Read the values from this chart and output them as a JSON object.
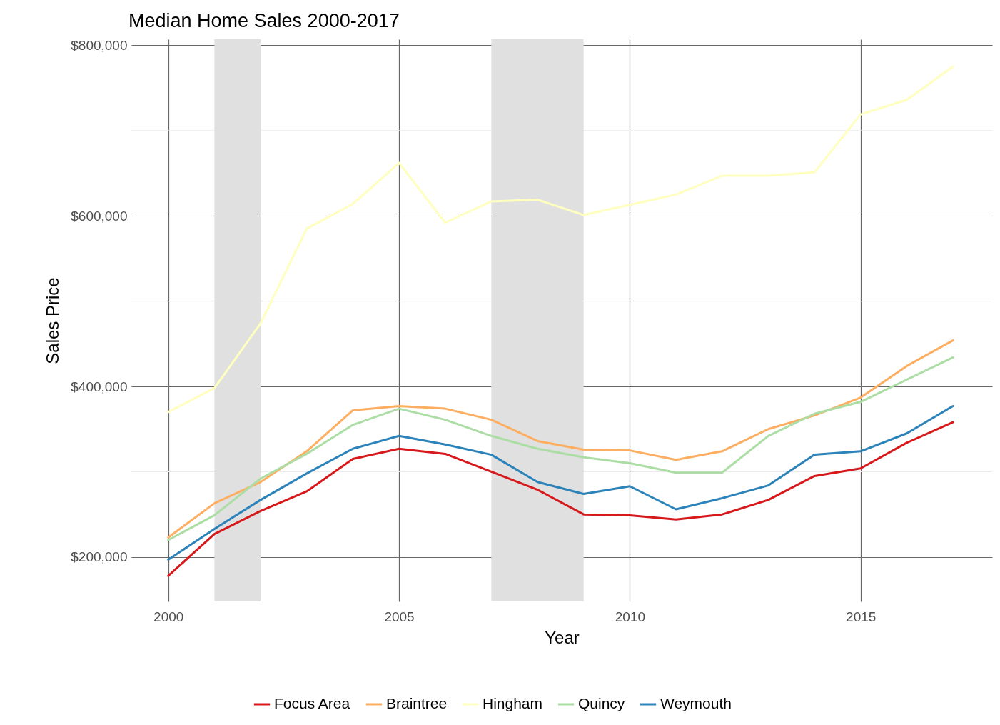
{
  "chart_data": {
    "type": "line",
    "title": "Median Home Sales 2000-2017",
    "xlabel": "Year",
    "ylabel": "Sales Price",
    "x": [
      2000,
      2001,
      2002,
      2003,
      2004,
      2005,
      2006,
      2007,
      2008,
      2009,
      2010,
      2011,
      2012,
      2013,
      2014,
      2015,
      2016,
      2017
    ],
    "series": [
      {
        "name": "Focus Area",
        "color": "#d7191c",
        "values": [
          178000,
          227000,
          254000,
          277000,
          315000,
          327000,
          321000,
          300000,
          279000,
          250000,
          249000,
          244000,
          250000,
          267000,
          295000,
          304000,
          334000,
          358000
        ]
      },
      {
        "name": "Braintree",
        "color": "#fdae61",
        "values": [
          223000,
          263000,
          288000,
          324000,
          372000,
          377000,
          374000,
          361000,
          336000,
          326000,
          325000,
          314000,
          324000,
          350000,
          366000,
          387000,
          424000,
          454000
        ]
      },
      {
        "name": "Hingham",
        "color": "#ffffbf",
        "values": [
          370000,
          398000,
          474000,
          585000,
          614000,
          662000,
          592000,
          617000,
          619000,
          601000,
          613000,
          625000,
          647000,
          647000,
          651000,
          719000,
          736000,
          775000
        ]
      },
      {
        "name": "Quincy",
        "color": "#abdda4",
        "values": [
          220000,
          249000,
          292000,
          321000,
          355000,
          374000,
          361000,
          342000,
          327000,
          317000,
          310000,
          299000,
          299000,
          342000,
          368000,
          382000,
          408000,
          434000
        ]
      },
      {
        "name": "Weymouth",
        "color": "#2b83ba",
        "values": [
          197000,
          233000,
          267000,
          298000,
          327000,
          342000,
          332000,
          320000,
          288000,
          274000,
          283000,
          256000,
          269000,
          284000,
          320000,
          324000,
          345000,
          377000
        ]
      }
    ],
    "xlim": [
      1999.2,
      2017.85
    ],
    "ylim": [
      148000,
      807000
    ],
    "xticks": [
      2000,
      2005,
      2010,
      2015
    ],
    "yticks": [
      {
        "value": 200000,
        "label": "$200,000"
      },
      {
        "value": 400000,
        "label": "$400,000"
      },
      {
        "value": 600000,
        "label": "$600,000"
      },
      {
        "value": 800000,
        "label": "$800,000"
      }
    ],
    "bands": [
      {
        "axis": "x",
        "from": 2001,
        "to": 2002,
        "color": "#e0e0e0"
      },
      {
        "axis": "x",
        "from": 2007,
        "to": 2009,
        "color": "#e0e0e0"
      }
    ],
    "grid": true,
    "legend": "bottom",
    "marker": "none",
    "line_style": "solid"
  }
}
